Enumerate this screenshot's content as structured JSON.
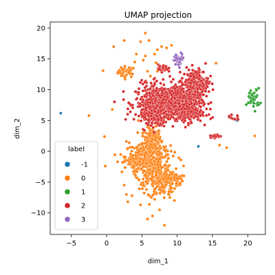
{
  "chart_data": {
    "type": "scatter",
    "title": "UMAP projection",
    "xlabel": "dim_1",
    "ylabel": "dim_2",
    "xlim": [
      -8,
      22.5
    ],
    "ylim": [
      -13.5,
      21
    ],
    "xticks": [
      -5,
      0,
      5,
      10,
      15,
      20
    ],
    "yticks": [
      -10,
      -5,
      0,
      5,
      10,
      15,
      20
    ],
    "xtick_labels": [
      "−5",
      "0",
      "5",
      "10",
      "15",
      "20"
    ],
    "ytick_labels": [
      "−10",
      "−5",
      "0",
      "5",
      "10",
      "15",
      "20"
    ],
    "grid": false,
    "legend": {
      "title": "label",
      "placement": "lower-left",
      "entries": [
        "-1",
        "0",
        "1",
        "2",
        "3"
      ]
    },
    "colors": {
      "-1": "#1f77b4",
      "0": "#ff7f0e",
      "1": "#2ca02c",
      "2": "#d62728",
      "3": "#9467bd"
    },
    "series": [
      {
        "name": "-1",
        "points": [
          [
            -6.5,
            6.2
          ],
          [
            13.0,
            0.8
          ],
          [
            18.5,
            5.0
          ],
          [
            18.0,
            5.3
          ],
          [
            4.9,
            6.3
          ]
        ]
      },
      {
        "name": "0",
        "points": [
          [
            5.5,
            19.2
          ],
          [
            6.0,
            18.0
          ],
          [
            4.8,
            17.8
          ],
          [
            2.5,
            18.0
          ],
          [
            1.0,
            17.0
          ],
          [
            7.8,
            17.0
          ],
          [
            7.2,
            16.5
          ],
          [
            8.5,
            16.8
          ],
          [
            9.2,
            17.2
          ],
          [
            4.2,
            15.8
          ],
          [
            5.5,
            15.5
          ],
          [
            6.8,
            15.8
          ],
          [
            4.0,
            14.5
          ],
          [
            5.2,
            14.8
          ],
          [
            7.0,
            14.4
          ],
          [
            3.8,
            13.5
          ],
          [
            5.8,
            13.0
          ],
          [
            7.2,
            13.0
          ],
          [
            6.2,
            12.2
          ],
          [
            -0.5,
            13.1
          ],
          [
            15.5,
            14.3
          ],
          [
            0.8,
            6.8
          ],
          [
            -2.5,
            5.8
          ],
          [
            4.5,
            5.0
          ],
          [
            -0.3,
            2.4
          ],
          [
            2.8,
            1.6
          ],
          [
            3.2,
            1.4
          ],
          [
            2.0,
            -0.5
          ],
          [
            -0.2,
            -2.4
          ],
          [
            16.0,
            1.0
          ],
          [
            17.0,
            0.6
          ],
          [
            10.5,
            -1.4
          ],
          [
            21.0,
            2.5
          ],
          [
            2.5,
            -5.5
          ],
          [
            2.8,
            -7.0
          ],
          [
            3.0,
            -8.2
          ],
          [
            6.8,
            -7.8
          ],
          [
            7.5,
            -9.5
          ],
          [
            6.5,
            -10.5
          ],
          [
            5.8,
            -11.0
          ],
          [
            8.2,
            -12.0
          ],
          [
            4.8,
            -8.7
          ],
          [
            3.6,
            -7.2
          ],
          [
            9.6,
            -8.0
          ]
        ],
        "clusters": [
          {
            "cx": 2.8,
            "cy": 12.9,
            "sx": 0.6,
            "sy": 0.45,
            "n": 40
          },
          {
            "cx": 6.5,
            "cy": 2.0,
            "sx": 0.6,
            "sy": 0.9,
            "n": 160
          },
          {
            "cx": 5.8,
            "cy": -0.8,
            "sx": 1.6,
            "sy": 1.0,
            "n": 260
          },
          {
            "cx": 6.8,
            "cy": -3.4,
            "sx": 1.3,
            "sy": 1.3,
            "n": 220
          },
          {
            "cx": 7.8,
            "cy": -5.6,
            "sx": 1.0,
            "sy": 1.0,
            "n": 90
          },
          {
            "cx": 9.4,
            "cy": -4.5,
            "sx": 0.7,
            "sy": 0.5,
            "n": 50
          },
          {
            "cx": 4.3,
            "cy": -1.8,
            "sx": 0.8,
            "sy": 0.6,
            "n": 60
          }
        ]
      },
      {
        "name": "1",
        "points": [],
        "clusters": [
          {
            "cx": 20.8,
            "cy": 8.6,
            "sx": 0.45,
            "sy": 0.8,
            "n": 45
          }
        ]
      },
      {
        "name": "2",
        "points": [
          [
            8.0,
            13.6
          ],
          [
            8.4,
            13.8
          ],
          [
            7.4,
            13.3
          ],
          [
            10.8,
            8.7
          ],
          [
            11.0,
            9.0
          ]
        ],
        "clusters": [
          {
            "cx": 7.5,
            "cy": 7.8,
            "sx": 1.7,
            "sy": 1.5,
            "n": 500
          },
          {
            "cx": 10.5,
            "cy": 8.3,
            "sx": 1.5,
            "sy": 1.4,
            "n": 420
          },
          {
            "cx": 12.6,
            "cy": 11.0,
            "sx": 0.9,
            "sy": 1.2,
            "n": 220
          },
          {
            "cx": 11.4,
            "cy": 6.3,
            "sx": 1.1,
            "sy": 0.8,
            "n": 160
          },
          {
            "cx": 6.6,
            "cy": 5.8,
            "sx": 0.9,
            "sy": 0.7,
            "n": 120
          },
          {
            "cx": 8.0,
            "cy": 13.5,
            "sx": 0.35,
            "sy": 0.3,
            "n": 25
          },
          {
            "cx": 15.3,
            "cy": 2.6,
            "sx": 0.4,
            "sy": 0.35,
            "n": 20
          },
          {
            "cx": 17.8,
            "cy": 5.5,
            "sx": 0.5,
            "sy": 0.2,
            "n": 12
          },
          {
            "cx": 10.8,
            "cy": 8.7,
            "sx": 0.2,
            "sy": 0.2,
            "n": 6
          }
        ]
      },
      {
        "name": "3",
        "points": [],
        "clusters": [
          {
            "cx": 10.3,
            "cy": 15.0,
            "sx": 0.35,
            "sy": 0.45,
            "n": 40
          }
        ]
      }
    ]
  }
}
